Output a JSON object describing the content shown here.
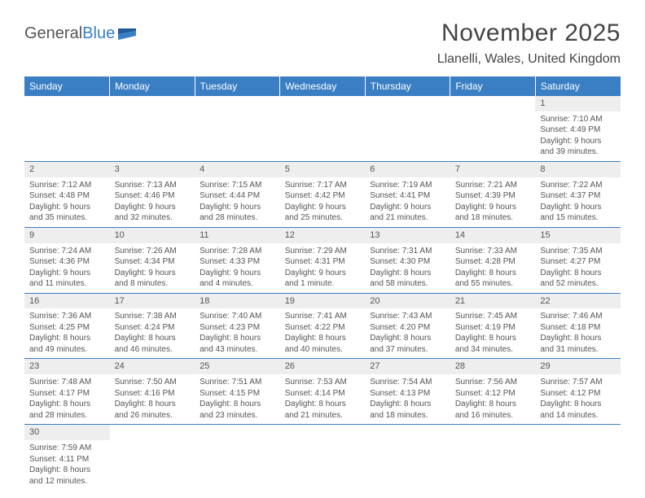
{
  "brand": {
    "general": "General",
    "blue": "Blue"
  },
  "title": "November 2025",
  "location": "Llanelli, Wales, United Kingdom",
  "colors": {
    "header_bg": "#3a7fc4",
    "header_text": "#ffffff",
    "daynum_bg": "#eeeeee",
    "row_border": "#3a7fc4",
    "body_text": "#555555"
  },
  "weekdays": [
    "Sunday",
    "Monday",
    "Tuesday",
    "Wednesday",
    "Thursday",
    "Friday",
    "Saturday"
  ],
  "weeks": [
    [
      null,
      null,
      null,
      null,
      null,
      null,
      {
        "n": "1",
        "sr": "Sunrise: 7:10 AM",
        "ss": "Sunset: 4:49 PM",
        "d1": "Daylight: 9 hours",
        "d2": "and 39 minutes."
      }
    ],
    [
      {
        "n": "2",
        "sr": "Sunrise: 7:12 AM",
        "ss": "Sunset: 4:48 PM",
        "d1": "Daylight: 9 hours",
        "d2": "and 35 minutes."
      },
      {
        "n": "3",
        "sr": "Sunrise: 7:13 AM",
        "ss": "Sunset: 4:46 PM",
        "d1": "Daylight: 9 hours",
        "d2": "and 32 minutes."
      },
      {
        "n": "4",
        "sr": "Sunrise: 7:15 AM",
        "ss": "Sunset: 4:44 PM",
        "d1": "Daylight: 9 hours",
        "d2": "and 28 minutes."
      },
      {
        "n": "5",
        "sr": "Sunrise: 7:17 AM",
        "ss": "Sunset: 4:42 PM",
        "d1": "Daylight: 9 hours",
        "d2": "and 25 minutes."
      },
      {
        "n": "6",
        "sr": "Sunrise: 7:19 AM",
        "ss": "Sunset: 4:41 PM",
        "d1": "Daylight: 9 hours",
        "d2": "and 21 minutes."
      },
      {
        "n": "7",
        "sr": "Sunrise: 7:21 AM",
        "ss": "Sunset: 4:39 PM",
        "d1": "Daylight: 9 hours",
        "d2": "and 18 minutes."
      },
      {
        "n": "8",
        "sr": "Sunrise: 7:22 AM",
        "ss": "Sunset: 4:37 PM",
        "d1": "Daylight: 9 hours",
        "d2": "and 15 minutes."
      }
    ],
    [
      {
        "n": "9",
        "sr": "Sunrise: 7:24 AM",
        "ss": "Sunset: 4:36 PM",
        "d1": "Daylight: 9 hours",
        "d2": "and 11 minutes."
      },
      {
        "n": "10",
        "sr": "Sunrise: 7:26 AM",
        "ss": "Sunset: 4:34 PM",
        "d1": "Daylight: 9 hours",
        "d2": "and 8 minutes."
      },
      {
        "n": "11",
        "sr": "Sunrise: 7:28 AM",
        "ss": "Sunset: 4:33 PM",
        "d1": "Daylight: 9 hours",
        "d2": "and 4 minutes."
      },
      {
        "n": "12",
        "sr": "Sunrise: 7:29 AM",
        "ss": "Sunset: 4:31 PM",
        "d1": "Daylight: 9 hours",
        "d2": "and 1 minute."
      },
      {
        "n": "13",
        "sr": "Sunrise: 7:31 AM",
        "ss": "Sunset: 4:30 PM",
        "d1": "Daylight: 8 hours",
        "d2": "and 58 minutes."
      },
      {
        "n": "14",
        "sr": "Sunrise: 7:33 AM",
        "ss": "Sunset: 4:28 PM",
        "d1": "Daylight: 8 hours",
        "d2": "and 55 minutes."
      },
      {
        "n": "15",
        "sr": "Sunrise: 7:35 AM",
        "ss": "Sunset: 4:27 PM",
        "d1": "Daylight: 8 hours",
        "d2": "and 52 minutes."
      }
    ],
    [
      {
        "n": "16",
        "sr": "Sunrise: 7:36 AM",
        "ss": "Sunset: 4:25 PM",
        "d1": "Daylight: 8 hours",
        "d2": "and 49 minutes."
      },
      {
        "n": "17",
        "sr": "Sunrise: 7:38 AM",
        "ss": "Sunset: 4:24 PM",
        "d1": "Daylight: 8 hours",
        "d2": "and 46 minutes."
      },
      {
        "n": "18",
        "sr": "Sunrise: 7:40 AM",
        "ss": "Sunset: 4:23 PM",
        "d1": "Daylight: 8 hours",
        "d2": "and 43 minutes."
      },
      {
        "n": "19",
        "sr": "Sunrise: 7:41 AM",
        "ss": "Sunset: 4:22 PM",
        "d1": "Daylight: 8 hours",
        "d2": "and 40 minutes."
      },
      {
        "n": "20",
        "sr": "Sunrise: 7:43 AM",
        "ss": "Sunset: 4:20 PM",
        "d1": "Daylight: 8 hours",
        "d2": "and 37 minutes."
      },
      {
        "n": "21",
        "sr": "Sunrise: 7:45 AM",
        "ss": "Sunset: 4:19 PM",
        "d1": "Daylight: 8 hours",
        "d2": "and 34 minutes."
      },
      {
        "n": "22",
        "sr": "Sunrise: 7:46 AM",
        "ss": "Sunset: 4:18 PM",
        "d1": "Daylight: 8 hours",
        "d2": "and 31 minutes."
      }
    ],
    [
      {
        "n": "23",
        "sr": "Sunrise: 7:48 AM",
        "ss": "Sunset: 4:17 PM",
        "d1": "Daylight: 8 hours",
        "d2": "and 28 minutes."
      },
      {
        "n": "24",
        "sr": "Sunrise: 7:50 AM",
        "ss": "Sunset: 4:16 PM",
        "d1": "Daylight: 8 hours",
        "d2": "and 26 minutes."
      },
      {
        "n": "25",
        "sr": "Sunrise: 7:51 AM",
        "ss": "Sunset: 4:15 PM",
        "d1": "Daylight: 8 hours",
        "d2": "and 23 minutes."
      },
      {
        "n": "26",
        "sr": "Sunrise: 7:53 AM",
        "ss": "Sunset: 4:14 PM",
        "d1": "Daylight: 8 hours",
        "d2": "and 21 minutes."
      },
      {
        "n": "27",
        "sr": "Sunrise: 7:54 AM",
        "ss": "Sunset: 4:13 PM",
        "d1": "Daylight: 8 hours",
        "d2": "and 18 minutes."
      },
      {
        "n": "28",
        "sr": "Sunrise: 7:56 AM",
        "ss": "Sunset: 4:12 PM",
        "d1": "Daylight: 8 hours",
        "d2": "and 16 minutes."
      },
      {
        "n": "29",
        "sr": "Sunrise: 7:57 AM",
        "ss": "Sunset: 4:12 PM",
        "d1": "Daylight: 8 hours",
        "d2": "and 14 minutes."
      }
    ],
    [
      {
        "n": "30",
        "sr": "Sunrise: 7:59 AM",
        "ss": "Sunset: 4:11 PM",
        "d1": "Daylight: 8 hours",
        "d2": "and 12 minutes."
      },
      null,
      null,
      null,
      null,
      null,
      null
    ]
  ]
}
